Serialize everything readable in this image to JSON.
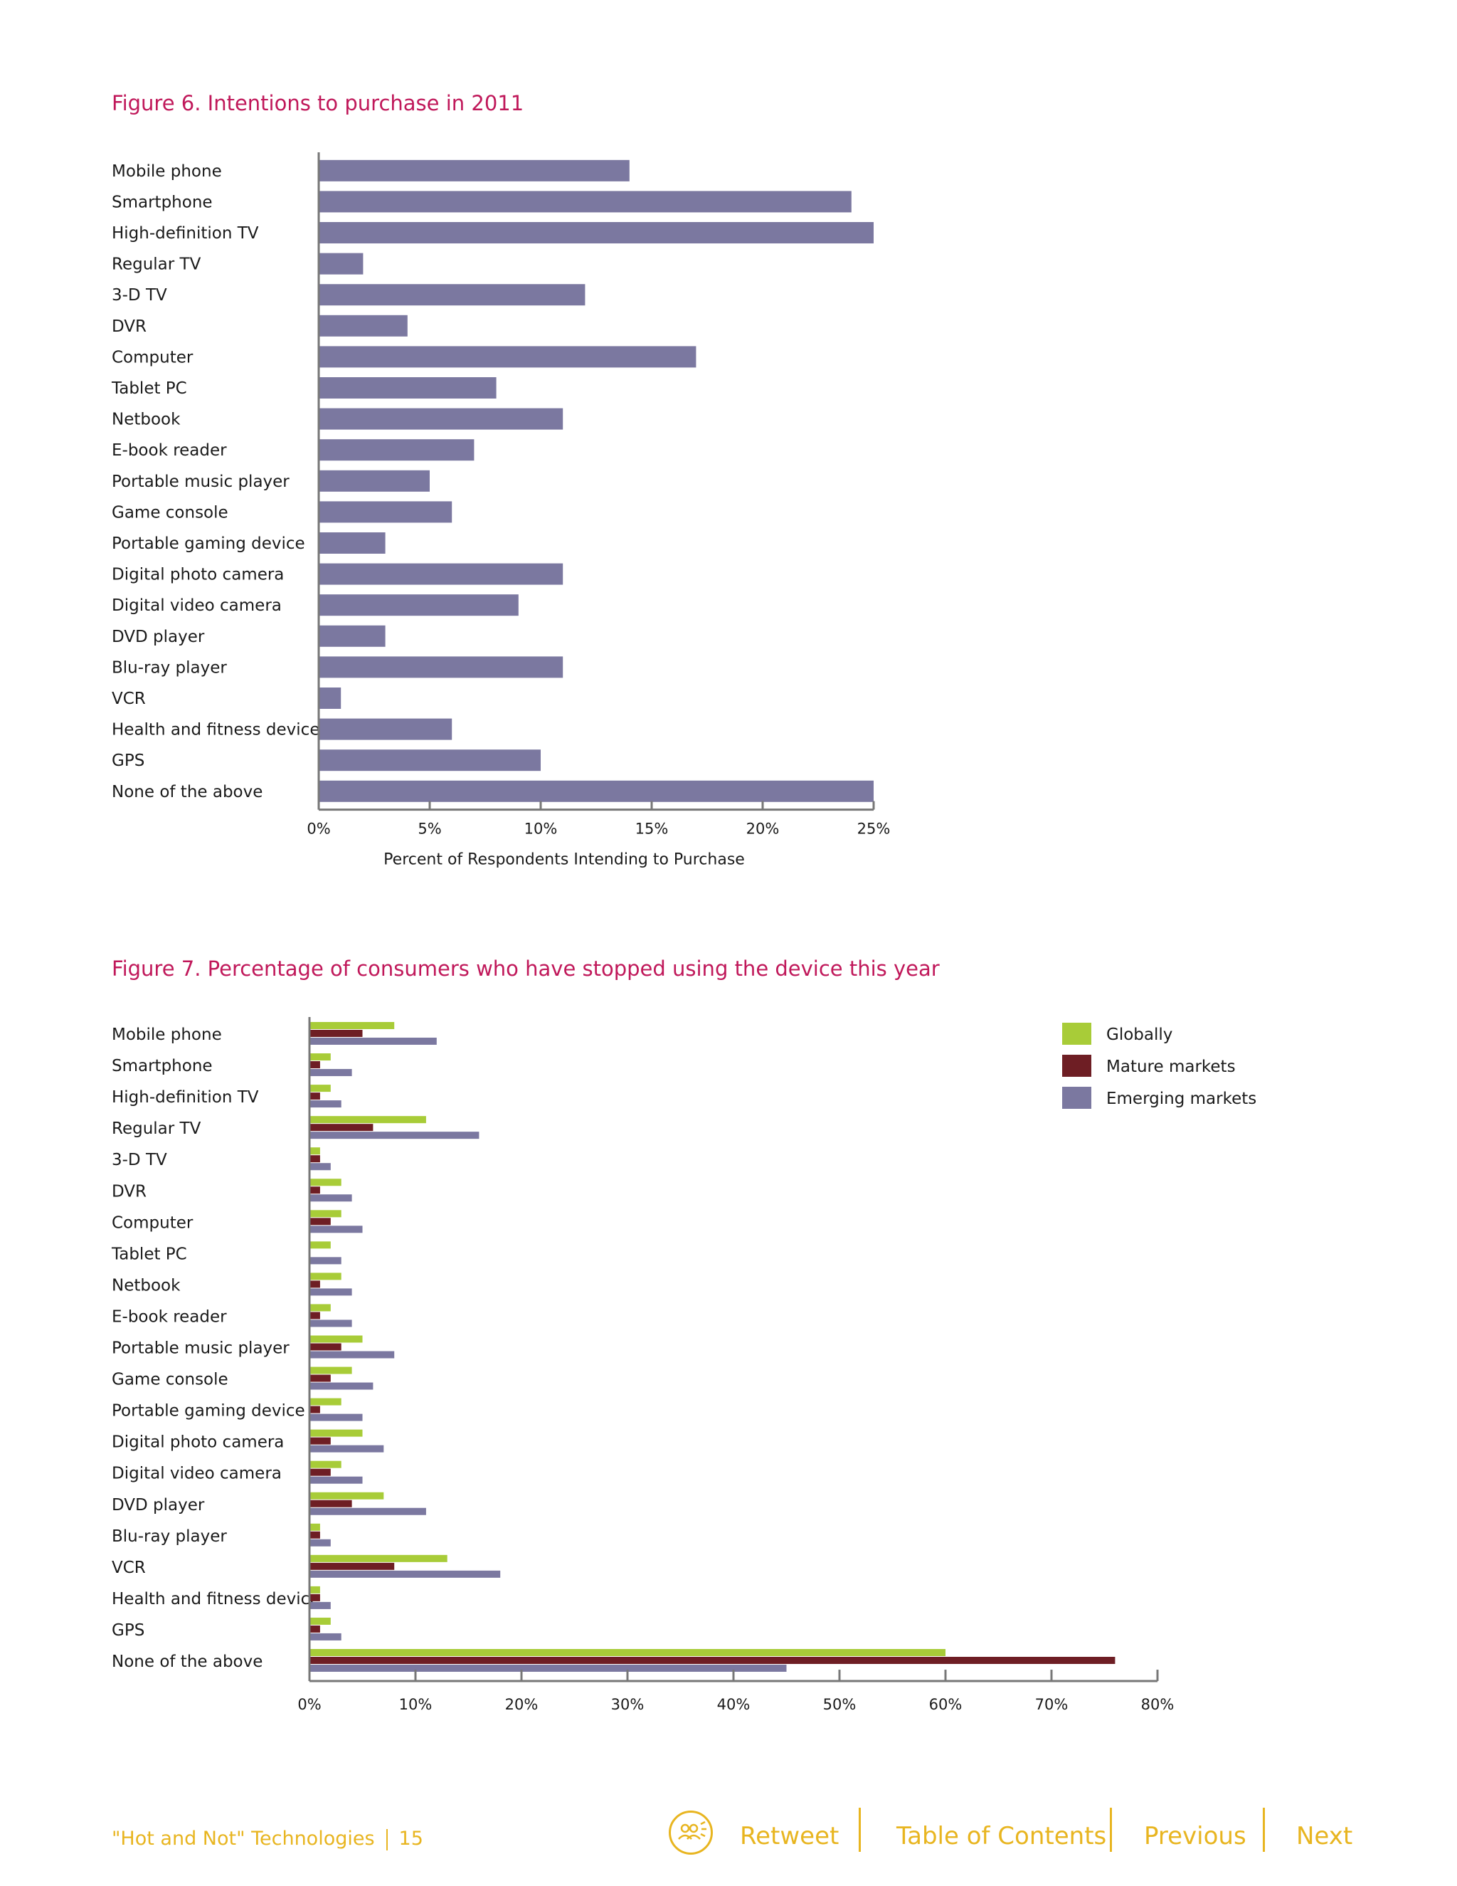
{
  "figure6": {
    "title": "Figure 6. Intentions to purchase in 2011",
    "chart_data": {
      "type": "bar",
      "orientation": "horizontal",
      "title": "Figure 6. Intentions to purchase in 2011",
      "xlabel": "Percent of Respondents Intending to Purchase",
      "ylabel": "",
      "xlim": [
        0,
        25
      ],
      "x_ticks": [
        "0%",
        "5%",
        "10%",
        "15%",
        "20%",
        "25%"
      ],
      "categories": [
        "Mobile phone",
        "Smartphone",
        "High-definition TV",
        "Regular TV",
        "3-D TV",
        "DVR",
        "Computer",
        "Tablet PC",
        "Netbook",
        "E-book reader",
        "Portable music player",
        "Game console",
        "Portable gaming device",
        "Digital photo camera",
        "Digital video camera",
        "DVD player",
        "Blu-ray player",
        "VCR",
        "Health and fitness device",
        "GPS",
        "None of the above"
      ],
      "values": [
        14,
        24,
        25,
        2,
        12,
        4,
        17,
        8,
        11,
        7,
        5,
        6,
        3,
        11,
        9,
        3,
        11,
        1,
        6,
        10,
        25
      ],
      "color": "#7b78a0"
    }
  },
  "figure7": {
    "title": "Figure 7. Percentage of consumers who have stopped using the device this year",
    "chart_data": {
      "type": "bar",
      "orientation": "horizontal",
      "title": "Figure 7. Percentage of consumers who have stopped using the device this year",
      "xlabel": "",
      "ylabel": "",
      "xlim": [
        0,
        80
      ],
      "x_ticks": [
        "0%",
        "10%",
        "20%",
        "30%",
        "40%",
        "50%",
        "60%",
        "70%",
        "80%"
      ],
      "legend_position": "top-right",
      "categories": [
        "Mobile phone",
        "Smartphone",
        "High-definition TV",
        "Regular TV",
        "3-D TV",
        "DVR",
        "Computer",
        "Tablet PC",
        "Netbook",
        "E-book reader",
        "Portable music player",
        "Game console",
        "Portable gaming device",
        "Digital photo camera",
        "Digital video camera",
        "DVD player",
        "Blu-ray player",
        "VCR",
        "Health and fitness device",
        "GPS",
        "None of the above"
      ],
      "series": [
        {
          "name": "Globally",
          "color": "#a8cc38",
          "values": [
            8,
            2,
            2,
            11,
            1,
            3,
            3,
            2,
            3,
            2,
            5,
            4,
            3,
            5,
            3,
            7,
            1,
            13,
            1,
            2,
            60
          ]
        },
        {
          "name": "Mature markets",
          "color": "#6e1e24",
          "values": [
            5,
            1,
            1,
            6,
            1,
            1,
            2,
            0,
            1,
            1,
            3,
            2,
            1,
            2,
            2,
            4,
            1,
            8,
            1,
            1,
            76
          ]
        },
        {
          "name": "Emerging markets",
          "color": "#7b78a0",
          "values": [
            12,
            4,
            3,
            16,
            2,
            4,
            5,
            3,
            4,
            4,
            8,
            6,
            5,
            7,
            5,
            11,
            2,
            18,
            2,
            3,
            45
          ]
        }
      ]
    }
  },
  "footer": {
    "document_title": "\"Hot and Not\" Technologies",
    "page_number": "15",
    "retweet": "Retweet",
    "table_of_contents": "Table of Contents",
    "previous": "Previous",
    "next": "Next"
  }
}
